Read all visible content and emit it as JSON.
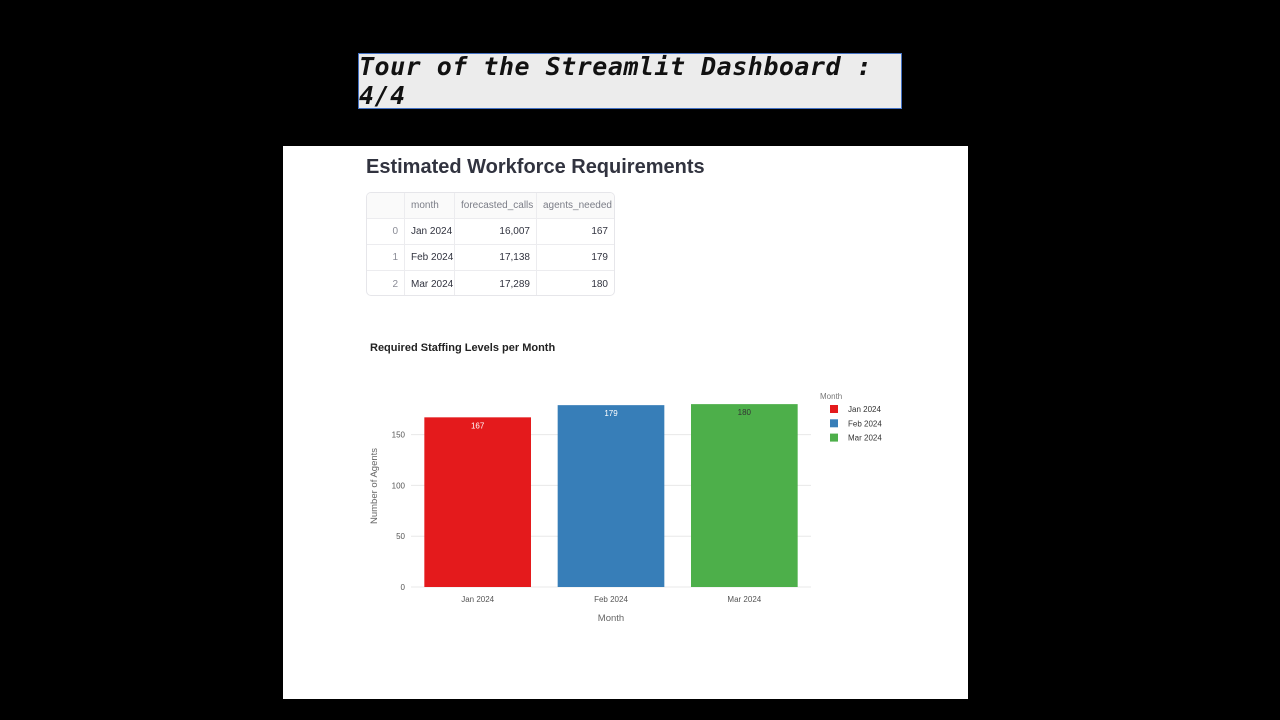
{
  "slide": {
    "title": "Tour of the Streamlit Dashboard : 4/4"
  },
  "page": {
    "title": "Estimated Workforce Requirements"
  },
  "table": {
    "columns": [
      "",
      "month",
      "forecasted_calls",
      "agents_needed"
    ],
    "rows": [
      {
        "index": "0",
        "month": "Jan 2024",
        "forecasted_calls": "16,007",
        "agents_needed": "167"
      },
      {
        "index": "1",
        "month": "Feb 2024",
        "forecasted_calls": "17,138",
        "agents_needed": "179"
      },
      {
        "index": "2",
        "month": "Mar 2024",
        "forecasted_calls": "17,289",
        "agents_needed": "180"
      }
    ]
  },
  "chart_data": {
    "type": "bar",
    "title": "Required Staffing Levels per Month",
    "xlabel": "Month",
    "ylabel": "Number of Agents",
    "categories": [
      "Jan 2024",
      "Feb 2024",
      "Mar 2024"
    ],
    "values": [
      167,
      179,
      180
    ],
    "colors": [
      "#e41a1c",
      "#377eb8",
      "#4daf4a"
    ],
    "label_colors": [
      "#ffffff",
      "#ffffff",
      "#333333"
    ],
    "yticks": [
      0,
      50,
      100,
      150
    ],
    "ylim": [
      0,
      188
    ],
    "grid": true,
    "legend": {
      "title": "Month",
      "placement": "top-right",
      "entries": [
        "Jan 2024",
        "Feb 2024",
        "Mar 2024"
      ]
    }
  }
}
